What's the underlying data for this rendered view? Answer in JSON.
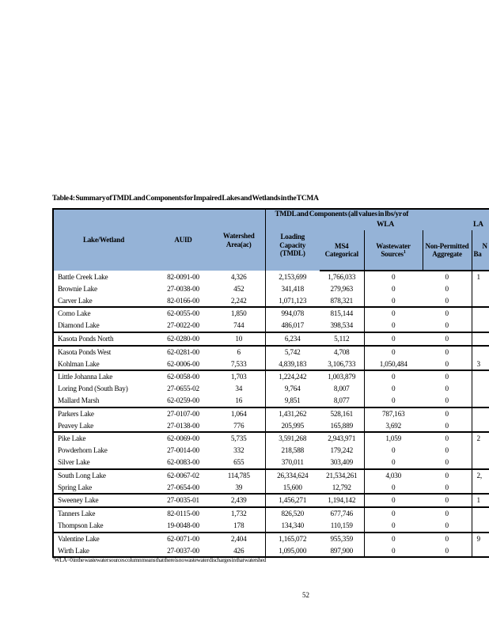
{
  "caption": "Table 4: Summary of TMDL and Components for Impaired Lakes and Wetlands in the TCMA",
  "page_number": "52",
  "colors": {
    "header_fill": "#95B3D7",
    "border": "#000000",
    "page_bg": "#FFFFFF"
  },
  "footnote": {
    "marker": "1",
    "text": "WLA=0 in the wastewater sources column means that there is no wastewater discharges in that watershed"
  },
  "table": {
    "header": {
      "lake": "Lake/Wetland",
      "auid": "AUID",
      "watershed": "Watershed Area(ac)",
      "group_tmdl": "TMDL and Components (all values in lbs/yr of",
      "wla": "WLA",
      "la": "LA",
      "loading": "Loading Capacity (TMDL)",
      "ms4": "MS4 Categorical",
      "wastewater": "Wastewater Sources",
      "wastewater_footnote": "1",
      "nonpermitted": "Non-Permitted Aggregate",
      "la_col_partial_line1": "N",
      "la_col_partial_line2": "Ba"
    },
    "rows": [
      {
        "name": "Battle Creek Lake",
        "auid": "82-0091-00",
        "area": "4,326",
        "tmdl": "2,153,699",
        "ms4": "1,766,033",
        "wastewater": "0",
        "nonpermitted": "0",
        "la": "1",
        "group_start": false
      },
      {
        "name": "Brownie Lake",
        "auid": "27-0038-00",
        "area": "452",
        "tmdl": "341,418",
        "ms4": "279,963",
        "wastewater": "0",
        "nonpermitted": "0",
        "la": "",
        "group_start": false
      },
      {
        "name": "Carver Lake",
        "auid": "82-0166-00",
        "area": "2,242",
        "tmdl": "1,071,123",
        "ms4": "878,321",
        "wastewater": "0",
        "nonpermitted": "0",
        "la": "",
        "group_start": false
      },
      {
        "name": "Como Lake",
        "auid": "62-0055-00",
        "area": "1,850",
        "tmdl": "994,078",
        "ms4": "815,144",
        "wastewater": "0",
        "nonpermitted": "0",
        "la": "",
        "group_start": true
      },
      {
        "name": "Diamond Lake",
        "auid": "27-0022-00",
        "area": "744",
        "tmdl": "486,017",
        "ms4": "398,534",
        "wastewater": "0",
        "nonpermitted": "0",
        "la": "",
        "group_start": false
      },
      {
        "name": "Kasota Ponds North",
        "auid": "62-0280-00",
        "area": "10",
        "tmdl": "6,234",
        "ms4": "5,112",
        "wastewater": "0",
        "nonpermitted": "0",
        "la": "",
        "group_start": true
      },
      {
        "name": "Kasota Ponds West",
        "auid": "62-0281-00",
        "area": "6",
        "tmdl": "5,742",
        "ms4": "4,708",
        "wastewater": "0",
        "nonpermitted": "0",
        "la": "",
        "group_start": true
      },
      {
        "name": "Kohlman Lake",
        "auid": "62-0006-00",
        "area": "7,533",
        "tmdl": "4,839,183",
        "ms4": "3,106,733",
        "wastewater": "1,050,484",
        "nonpermitted": "0",
        "la": "3",
        "group_start": false
      },
      {
        "name": "Little Johanna Lake",
        "auid": "62-0058-00",
        "area": "1,703",
        "tmdl": "1,224,242",
        "ms4": "1,003,879",
        "wastewater": "0",
        "nonpermitted": "0",
        "la": "",
        "group_start": true
      },
      {
        "name": "Loring Pond (South Bay)",
        "auid": "27-0655-02",
        "area": "34",
        "tmdl": "9,764",
        "ms4": "8,007",
        "wastewater": "0",
        "nonpermitted": "0",
        "la": "",
        "group_start": false
      },
      {
        "name": "Mallard Marsh",
        "auid": "62-0259-00",
        "area": "16",
        "tmdl": "9,851",
        "ms4": "8,077",
        "wastewater": "0",
        "nonpermitted": "0",
        "la": "",
        "group_start": false
      },
      {
        "name": "Parkers Lake",
        "auid": "27-0107-00",
        "area": "1,064",
        "tmdl": "1,431,262",
        "ms4": "528,161",
        "wastewater": "787,163",
        "nonpermitted": "0",
        "la": "",
        "group_start": true
      },
      {
        "name": "Peavey Lake",
        "auid": "27-0138-00",
        "area": "776",
        "tmdl": "205,995",
        "ms4": "165,889",
        "wastewater": "3,692",
        "nonpermitted": "0",
        "la": "",
        "group_start": false
      },
      {
        "name": "Pike Lake",
        "auid": "62-0069-00",
        "area": "5,735",
        "tmdl": "3,591,268",
        "ms4": "2,943,971",
        "wastewater": "1,059",
        "nonpermitted": "0",
        "la": "2",
        "group_start": true
      },
      {
        "name": "Powderhorn Lake",
        "auid": "27-0014-00",
        "area": "332",
        "tmdl": "218,588",
        "ms4": "179,242",
        "wastewater": "0",
        "nonpermitted": "0",
        "la": "",
        "group_start": false
      },
      {
        "name": "Silver Lake",
        "auid": "62-0083-00",
        "area": "655",
        "tmdl": "370,011",
        "ms4": "303,409",
        "wastewater": "0",
        "nonpermitted": "0",
        "la": "",
        "group_start": false
      },
      {
        "name": "South Long Lake",
        "auid": "62-0067-02",
        "area": "114,785",
        "tmdl": "26,334,624",
        "ms4": "21,534,261",
        "wastewater": "4,030",
        "nonpermitted": "0",
        "la": "2,",
        "group_start": true
      },
      {
        "name": "Spring Lake",
        "auid": "27-0654-00",
        "area": "39",
        "tmdl": "15,600",
        "ms4": "12,792",
        "wastewater": "0",
        "nonpermitted": "0",
        "la": "",
        "group_start": false
      },
      {
        "name": "Sweeney Lake",
        "auid": "27-0035-01",
        "area": "2,439",
        "tmdl": "1,456,271",
        "ms4": "1,194,142",
        "wastewater": "0",
        "nonpermitted": "0",
        "la": "1",
        "group_start": true
      },
      {
        "name": "Tanners Lake",
        "auid": "82-0115-00",
        "area": "1,732",
        "tmdl": "826,520",
        "ms4": "677,746",
        "wastewater": "0",
        "nonpermitted": "0",
        "la": "",
        "group_start": true
      },
      {
        "name": "Thompson Lake",
        "auid": "19-0048-00",
        "area": "178",
        "tmdl": "134,340",
        "ms4": "110,159",
        "wastewater": "0",
        "nonpermitted": "0",
        "la": "",
        "group_start": false
      },
      {
        "name": "Valentine Lake",
        "auid": "62-0071-00",
        "area": "2,404",
        "tmdl": "1,165,072",
        "ms4": "955,359",
        "wastewater": "0",
        "nonpermitted": "0",
        "la": "9",
        "group_start": true
      },
      {
        "name": "Wirth Lake",
        "auid": "27-0037-00",
        "area": "426",
        "tmdl": "1,095,000",
        "ms4": "897,900",
        "wastewater": "0",
        "nonpermitted": "0",
        "la": "",
        "group_start": false
      }
    ]
  }
}
